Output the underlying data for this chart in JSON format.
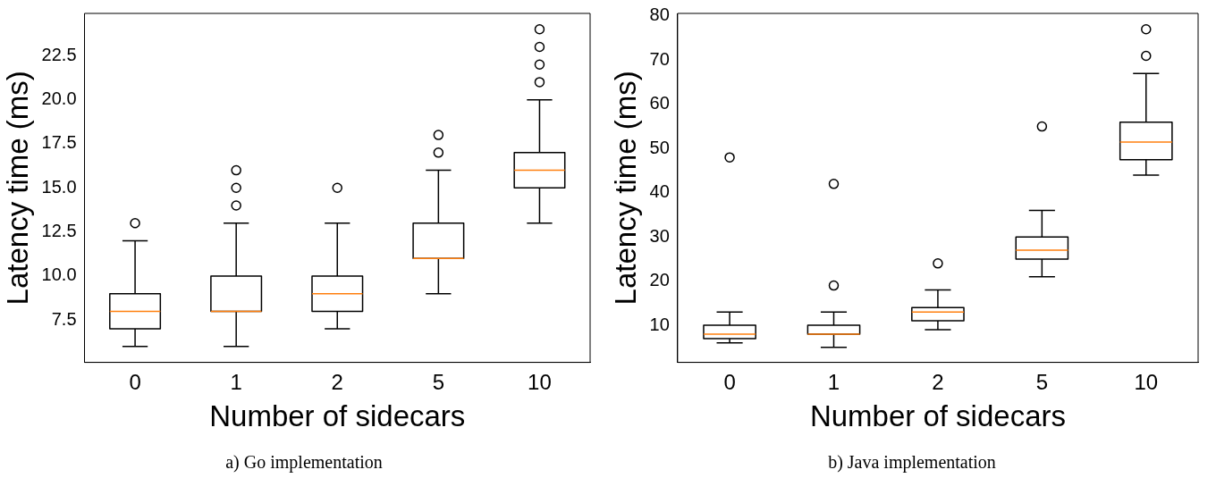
{
  "chart_data": [
    {
      "type": "box",
      "categories": [
        "0",
        "1",
        "2",
        "5",
        "10"
      ],
      "xlabel": "Number of sidecars",
      "ylabel": "Latency time (ms)",
      "ylim": [
        5.1,
        24.9
      ],
      "yticks": [
        {
          "value": 7.5,
          "label": "7.5"
        },
        {
          "value": 10,
          "label": "10.0"
        },
        {
          "value": 12.5,
          "label": "12.5"
        },
        {
          "value": 15,
          "label": "15.0"
        },
        {
          "value": 17.5,
          "label": "17.5"
        },
        {
          "value": 20,
          "label": "20.0"
        },
        {
          "value": 22.5,
          "label": "22.5"
        }
      ],
      "boxes": [
        {
          "low": 6,
          "q1": 7,
          "median": 8,
          "q3": 9,
          "high": 12,
          "outliers": [
            13
          ]
        },
        {
          "low": 6,
          "q1": 8,
          "median": 8,
          "q3": 10,
          "high": 13,
          "outliers": [
            14,
            15,
            16
          ]
        },
        {
          "low": 7,
          "q1": 8,
          "median": 9,
          "q3": 10,
          "high": 13,
          "outliers": [
            15
          ]
        },
        {
          "low": 9,
          "q1": 11,
          "median": 11,
          "q3": 13,
          "high": 16,
          "outliers": [
            17,
            18
          ]
        },
        {
          "low": 13,
          "q1": 15,
          "median": 16,
          "q3": 17,
          "high": 20,
          "outliers": [
            21,
            22,
            23,
            24
          ]
        }
      ],
      "annotations": [
        "a) Go implementation"
      ]
    },
    {
      "type": "box",
      "categories": [
        "0",
        "1",
        "2",
        "5",
        "10"
      ],
      "xlabel": "Number of sidecars",
      "ylabel": "Latency time (ms)",
      "ylim": [
        1.6,
        80.6
      ],
      "yticks": [
        10,
        20,
        30,
        40,
        50,
        60,
        70,
        80
      ],
      "boxes": [
        {
          "low": 6,
          "q1": 7,
          "median": 8,
          "q3": 10,
          "high": 13,
          "outliers": [
            48
          ]
        },
        {
          "low": 5,
          "q1": 8,
          "median": 8,
          "q3": 10,
          "high": 13,
          "outliers": [
            19,
            42
          ]
        },
        {
          "low": 9,
          "q1": 11,
          "median": 13,
          "q3": 14,
          "high": 18,
          "outliers": [
            24
          ]
        },
        {
          "low": 21,
          "q1": 25,
          "median": 27,
          "q3": 30,
          "high": 36,
          "outliers": [
            55
          ]
        },
        {
          "low": 44,
          "q1": 47.5,
          "median": 51.5,
          "q3": 56,
          "high": 67,
          "outliers": [
            71,
            77
          ]
        }
      ],
      "annotations": [
        "b) Java implementation"
      ]
    }
  ]
}
